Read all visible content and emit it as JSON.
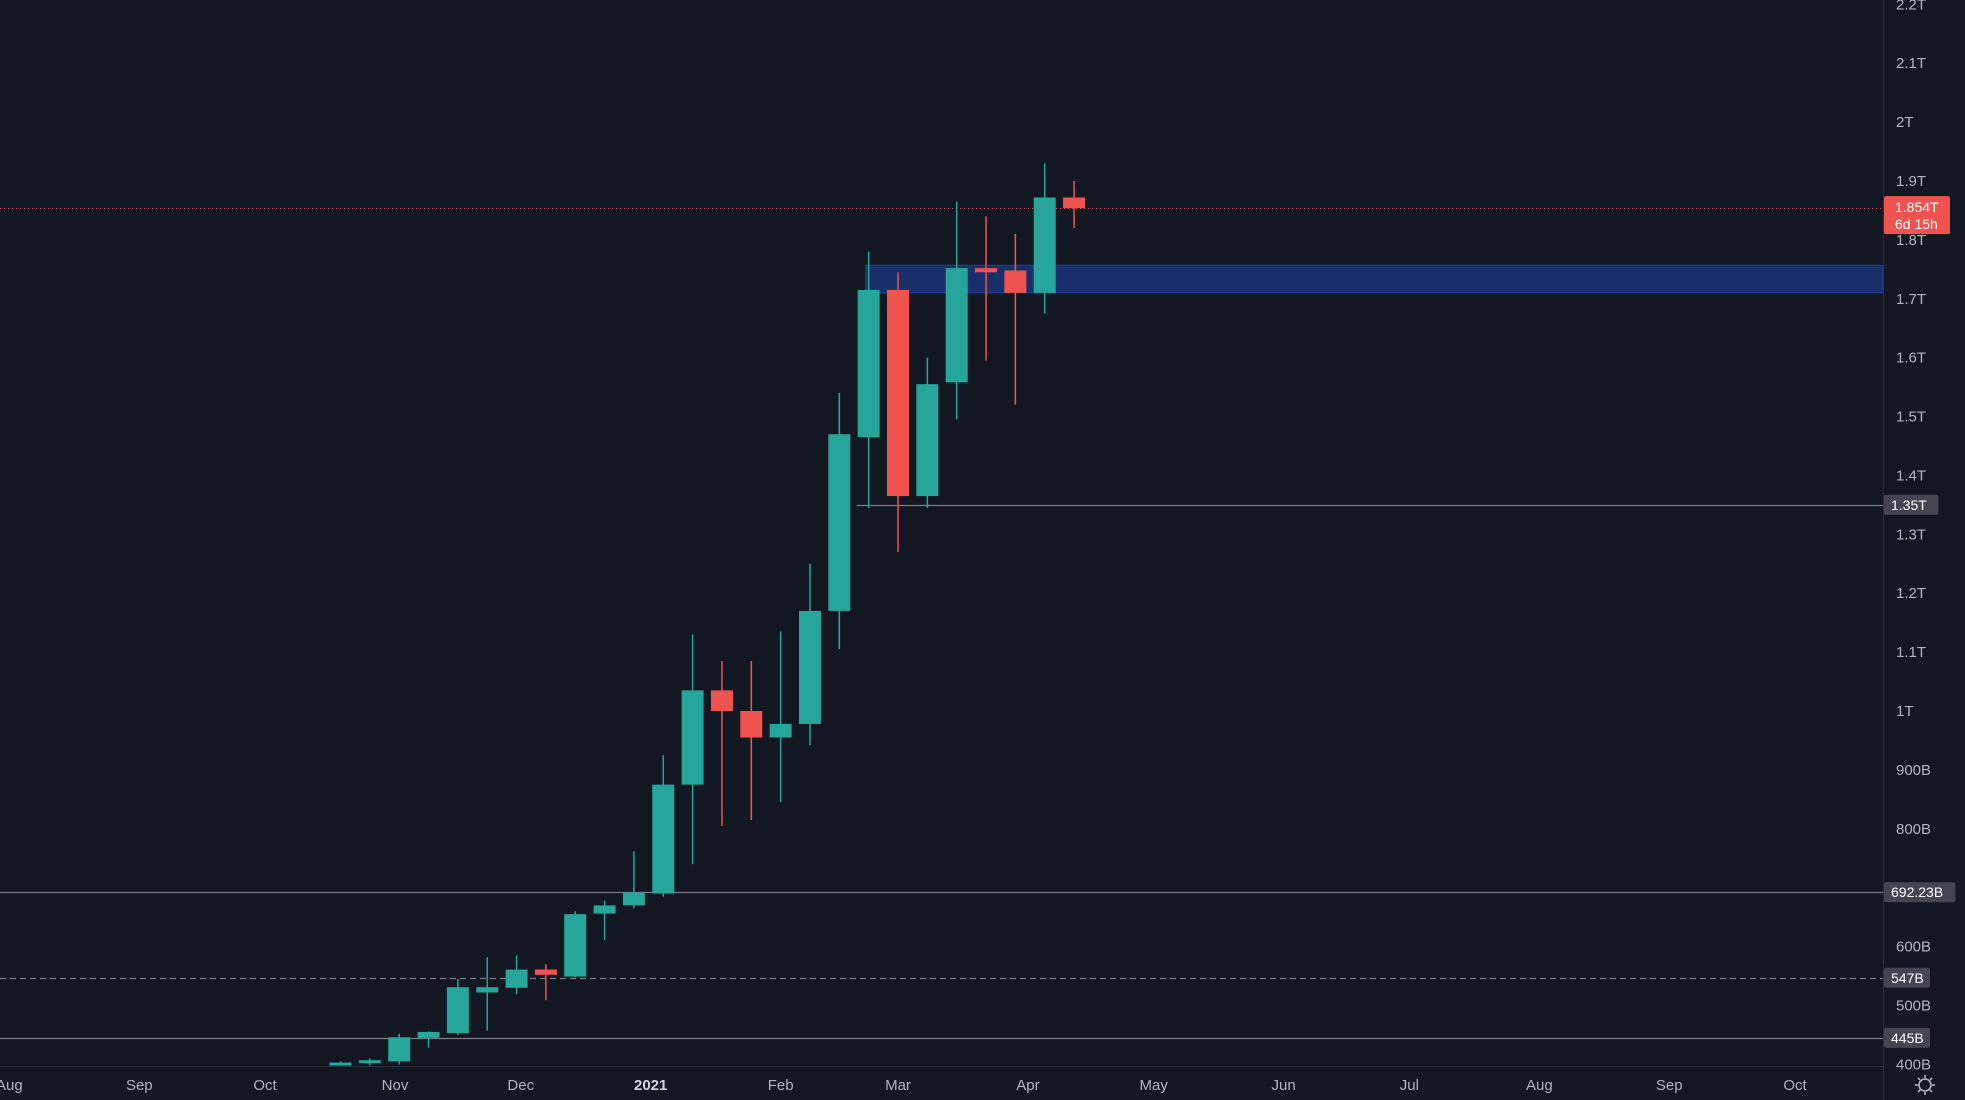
{
  "colors": {
    "background": "#131722",
    "up": "#26a69a",
    "down": "#ef5350",
    "zone": "#2962ff",
    "grid_text": "#b2b5be",
    "level_line": "#787b86",
    "tag_bg": "#434651"
  },
  "chart_data": {
    "type": "candlestick",
    "interval": "weekly",
    "y_scale": "linear",
    "y_unit": "USD",
    "ylim": [
      400000000000,
      2210000000000
    ],
    "y_ticks": [
      "400B",
      "500B",
      "600B",
      "800B",
      "900B",
      "1T",
      "1.1T",
      "1.2T",
      "1.3T",
      "1.4T",
      "1.5T",
      "1.6T",
      "1.7T",
      "1.8T",
      "1.9T",
      "2T",
      "2.1T",
      "2.2T"
    ],
    "y_tick_values": [
      400000000000,
      500000000000,
      600000000000,
      800000000000,
      900000000000,
      1000000000000,
      1100000000000,
      1200000000000,
      1300000000000,
      1400000000000,
      1500000000000,
      1600000000000,
      1700000000000,
      1800000000000,
      1900000000000,
      2000000000000,
      2100000000000,
      2200000000000
    ],
    "x_labels": [
      {
        "label": "Aug",
        "date": "2020-08-01",
        "bold": false
      },
      {
        "label": "Sep",
        "date": "2020-09-01",
        "bold": false
      },
      {
        "label": "Oct",
        "date": "2020-10-01",
        "bold": false
      },
      {
        "label": "Nov",
        "date": "2020-11-01",
        "bold": false
      },
      {
        "label": "Dec",
        "date": "2020-12-01",
        "bold": false
      },
      {
        "label": "2021",
        "date": "2021-01-01",
        "bold": true
      },
      {
        "label": "Feb",
        "date": "2021-02-01",
        "bold": false
      },
      {
        "label": "Mar",
        "date": "2021-03-01",
        "bold": false
      },
      {
        "label": "Apr",
        "date": "2021-04-01",
        "bold": false
      },
      {
        "label": "May",
        "date": "2021-05-01",
        "bold": false
      },
      {
        "label": "Jun",
        "date": "2021-06-01",
        "bold": false
      },
      {
        "label": "Jul",
        "date": "2021-07-01",
        "bold": false
      },
      {
        "label": "Aug",
        "date": "2021-08-01",
        "bold": false
      },
      {
        "label": "Sep",
        "date": "2021-09-01",
        "bold": false
      },
      {
        "label": "Oct",
        "date": "2021-10-01",
        "bold": false
      }
    ],
    "candles": [
      {
        "date": "2020-10-19",
        "open": 402000000000,
        "high": 405000000000,
        "low": 398000000000,
        "close": 403000000000
      },
      {
        "date": "2020-10-26",
        "open": 403000000000,
        "high": 410000000000,
        "low": 398000000000,
        "close": 407000000000
      },
      {
        "date": "2020-11-02",
        "open": 405000000000,
        "high": 452000000000,
        "low": 400000000000,
        "close": 446000000000
      },
      {
        "date": "2020-11-09",
        "open": 445000000000,
        "high": 456000000000,
        "low": 428000000000,
        "close": 455000000000
      },
      {
        "date": "2020-11-16",
        "open": 453000000000,
        "high": 545000000000,
        "low": 450000000000,
        "close": 531000000000
      },
      {
        "date": "2020-11-23",
        "open": 522000000000,
        "high": 582000000000,
        "low": 457000000000,
        "close": 531000000000
      },
      {
        "date": "2020-11-30",
        "open": 530000000000,
        "high": 585000000000,
        "low": 519000000000,
        "close": 561000000000
      },
      {
        "date": "2020-12-07",
        "open": 561000000000,
        "high": 570000000000,
        "low": 509000000000,
        "close": 552000000000
      },
      {
        "date": "2020-12-14",
        "open": 549000000000,
        "high": 660000000000,
        "low": 548000000000,
        "close": 655000000000
      },
      {
        "date": "2020-12-21",
        "open": 656000000000,
        "high": 678000000000,
        "low": 611000000000,
        "close": 670000000000
      },
      {
        "date": "2020-12-28",
        "open": 670000000000,
        "high": 762000000000,
        "low": 665000000000,
        "close": 692000000000
      },
      {
        "date": "2021-01-04",
        "open": 690000000000,
        "high": 925000000000,
        "low": 685000000000,
        "close": 875000000000
      },
      {
        "date": "2021-01-11",
        "open": 875000000000,
        "high": 1130000000000,
        "low": 740000000000,
        "close": 1035000000000
      },
      {
        "date": "2021-01-18",
        "open": 1035000000000,
        "high": 1085000000000,
        "low": 805000000000,
        "close": 1000000000000
      },
      {
        "date": "2021-01-25",
        "open": 1000000000000,
        "high": 1085000000000,
        "low": 815000000000,
        "close": 955000000000
      },
      {
        "date": "2021-02-01",
        "open": 955000000000,
        "high": 1135000000000,
        "low": 845000000000,
        "close": 978000000000
      },
      {
        "date": "2021-02-08",
        "open": 978000000000,
        "high": 1250000000000,
        "low": 942000000000,
        "close": 1170000000000
      },
      {
        "date": "2021-02-15",
        "open": 1170000000000,
        "high": 1540000000000,
        "low": 1105000000000,
        "close": 1470000000000
      },
      {
        "date": "2021-02-22",
        "open": 1465000000000,
        "high": 1780000000000,
        "low": 1345000000000,
        "close": 1715000000000
      },
      {
        "date": "2021-03-01",
        "open": 1715000000000,
        "high": 1745000000000,
        "low": 1270000000000,
        "close": 1365000000000
      },
      {
        "date": "2021-03-08",
        "open": 1365000000000,
        "high": 1600000000000,
        "low": 1345000000000,
        "close": 1555000000000
      },
      {
        "date": "2021-03-15",
        "open": 1558000000000,
        "high": 1865000000000,
        "low": 1495000000000,
        "close": 1752000000000
      },
      {
        "date": "2021-03-22",
        "open": 1752000000000,
        "high": 1840000000000,
        "low": 1595000000000,
        "close": 1745000000000
      },
      {
        "date": "2021-03-29",
        "open": 1748000000000,
        "high": 1810000000000,
        "low": 1520000000000,
        "close": 1710000000000
      },
      {
        "date": "2021-04-05",
        "open": 1710000000000,
        "high": 1930000000000,
        "low": 1675000000000,
        "close": 1872000000000
      },
      {
        "date": "2021-04-12",
        "open": 1872000000000,
        "high": 1900000000000,
        "low": 1820000000000,
        "close": 1854000000000
      }
    ],
    "levels": [
      {
        "value": 1350000000000,
        "label": "1.35T",
        "style": "solid",
        "from_date": "2021-02-22"
      },
      {
        "value": 692230000000,
        "label": "692.23B",
        "style": "solid"
      },
      {
        "value": 547000000000,
        "label": "547B",
        "style": "dashed"
      },
      {
        "value": 445000000000,
        "label": "445B",
        "style": "solid"
      }
    ],
    "zone": {
      "low": 1710000000000,
      "high": 1757000000000,
      "from_date": "2021-02-22"
    },
    "last_price": {
      "value": 1854000000000,
      "label": "1.854T",
      "countdown": "6d 15h"
    }
  }
}
